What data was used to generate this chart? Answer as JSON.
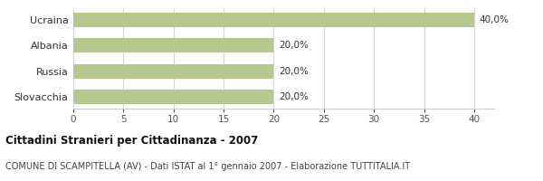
{
  "categories": [
    "Slovacchia",
    "Russia",
    "Albania",
    "Ucraina"
  ],
  "values": [
    20.0,
    20.0,
    20.0,
    40.0
  ],
  "bar_labels": [
    "20,0%",
    "20,0%",
    "20,0%",
    "40,0%"
  ],
  "bar_color": "#b5c98e",
  "xlim": [
    0,
    42
  ],
  "xticks": [
    0,
    5,
    10,
    15,
    20,
    25,
    30,
    35,
    40
  ],
  "title_bold": "Cittadini Stranieri per Cittadinanza - 2007",
  "subtitle": "COMUNE DI SCAMPITELLA (AV) - Dati ISTAT al 1° gennaio 2007 - Elaborazione TUTTITALIA.IT",
  "bg_color": "#ffffff",
  "grid_color": "#cccccc",
  "label_fontsize": 8,
  "tick_fontsize": 7.5,
  "title_fontsize": 8.5,
  "subtitle_fontsize": 7,
  "bar_label_fontsize": 7.5
}
